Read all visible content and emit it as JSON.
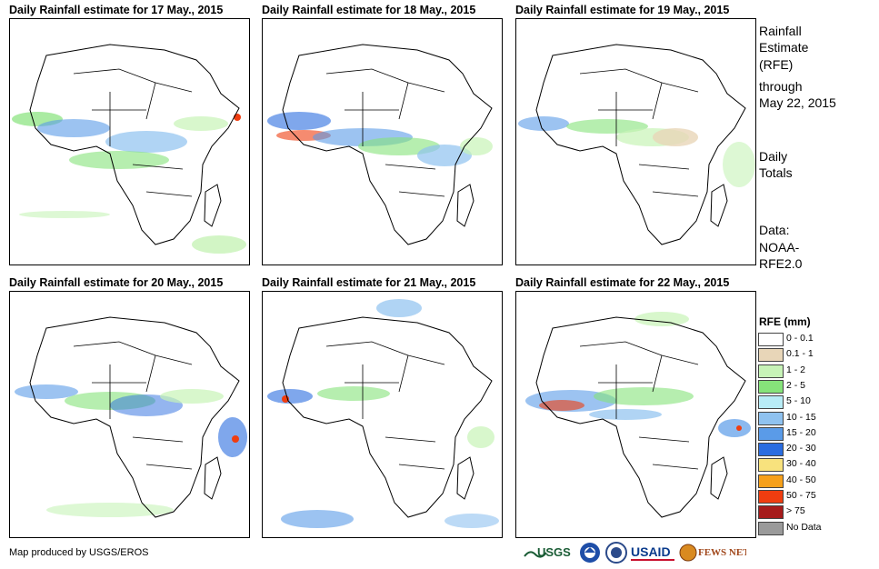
{
  "panels": [
    {
      "title": "Daily Rainfall estimate for 17 May., 2015"
    },
    {
      "title": "Daily Rainfall estimate for 18 May., 2015"
    },
    {
      "title": "Daily Rainfall estimate for 19 May., 2015"
    },
    {
      "title": "Daily Rainfall estimate for 20 May., 2015"
    },
    {
      "title": "Daily Rainfall estimate for 21 May., 2015"
    },
    {
      "title": "Daily Rainfall estimate for 22 May., 2015"
    }
  ],
  "side": {
    "title_line1": "Rainfall",
    "title_line2": "Estimate",
    "title_line3": "(RFE)",
    "through": "through",
    "date": "May 22, 2015",
    "daily1": "Daily",
    "daily2": "Totals",
    "data1": "Data:",
    "data2": "NOAA-",
    "data3": "RFE2.0"
  },
  "legend": {
    "title": "RFE (mm)",
    "items": [
      {
        "label": "0 - 0.1",
        "color": "#ffffff"
      },
      {
        "label": "0.1 - 1",
        "color": "#e8d6b8"
      },
      {
        "label": "1 - 2",
        "color": "#c7f3b7"
      },
      {
        "label": "2 - 5",
        "color": "#86e37a"
      },
      {
        "label": "5 - 10",
        "color": "#b8ecf6"
      },
      {
        "label": "10 - 15",
        "color": "#8fc2f0"
      },
      {
        "label": "15 - 20",
        "color": "#5a9be8"
      },
      {
        "label": "20 - 30",
        "color": "#2a6ce0"
      },
      {
        "label": "30 - 40",
        "color": "#f8e27d"
      },
      {
        "label": "40 - 50",
        "color": "#f6a01a"
      },
      {
        "label": "50 - 75",
        "color": "#ef3d10"
      },
      {
        "label": "> 75",
        "color": "#a61b1b"
      },
      {
        "label": "No Data",
        "color": "#9a9a9a"
      }
    ]
  },
  "credit": "Map produced by USGS/EROS",
  "logos": {
    "usgs": "USGS",
    "usaid": "USAID",
    "fews": "FEWS NET"
  }
}
